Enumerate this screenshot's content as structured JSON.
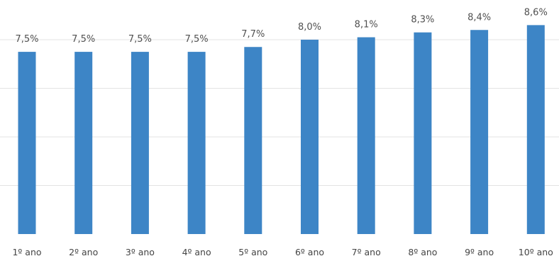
{
  "chart_data": {
    "type": "bar",
    "categories": [
      "1º ano",
      "2º ano",
      "3º ano",
      "4º ano",
      "5º ano",
      "6º ano",
      "7º ano",
      "8º ano",
      "9º ano",
      "10º ano"
    ],
    "values": [
      7.5,
      7.5,
      7.5,
      7.5,
      7.7,
      8.0,
      8.1,
      8.3,
      8.4,
      8.6
    ],
    "data_labels": [
      "7,5%",
      "7,5%",
      "7,5%",
      "7,5%",
      "7,7%",
      "8,0%",
      "8,1%",
      "8,3%",
      "8,4%",
      "8,6%"
    ],
    "title": "",
    "xlabel": "",
    "ylabel": "",
    "ylim": [
      0,
      9.4
    ],
    "grid": true,
    "legend": "none",
    "colors": {
      "bar": "#3d85c6",
      "grid": "#e3e3e3",
      "label": "#505050"
    }
  }
}
